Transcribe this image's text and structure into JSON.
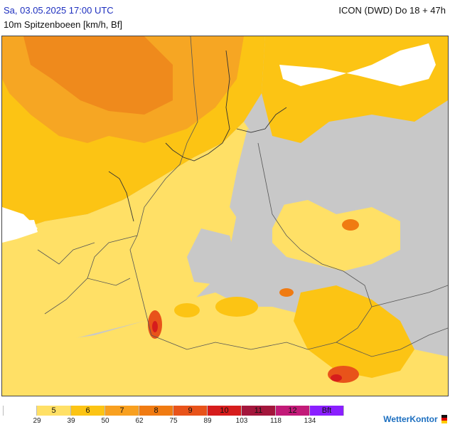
{
  "header": {
    "datetime": "Sa, 03.05.2025 17:00 UTC",
    "model": "ICON (DWD) Do 18 + 47h",
    "variable": "10m Spitzenboeen [km/h, Bf]"
  },
  "map": {
    "land_color": "#c8c8c8",
    "water_color": "#ffffff"
  },
  "legend": {
    "boxes": [
      {
        "label": "",
        "color": "#ffffff"
      },
      {
        "label": "5",
        "color": "#ffe066"
      },
      {
        "label": "6",
        "color": "#fcc414"
      },
      {
        "label": "7",
        "color": "#f8a020"
      },
      {
        "label": "8",
        "color": "#f07b12"
      },
      {
        "label": "9",
        "color": "#e8531a"
      },
      {
        "label": "10",
        "color": "#d61c1c"
      },
      {
        "label": "11",
        "color": "#a3163c"
      },
      {
        "label": "12",
        "color": "#c21a78"
      },
      {
        "label": "Bft",
        "color": "#8a1fff"
      }
    ],
    "ticks": [
      "29",
      "39",
      "50",
      "62",
      "75",
      "89",
      "103",
      "118",
      "134"
    ]
  },
  "brand": "WetterKontor"
}
